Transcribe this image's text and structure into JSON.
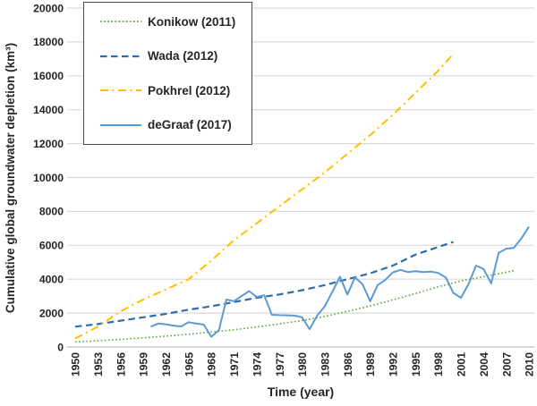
{
  "chart_data": {
    "type": "line",
    "title": "",
    "xlabel": "Time (year)",
    "ylabel": "Cumulative global groundwater depletion (km³)",
    "xlim": [
      1950,
      2010
    ],
    "ylim": [
      0,
      20000
    ],
    "x_ticks": [
      1950,
      1953,
      1956,
      1959,
      1962,
      1965,
      1968,
      1971,
      1974,
      1977,
      1980,
      1983,
      1986,
      1989,
      1992,
      1995,
      1998,
      2001,
      2004,
      2007,
      2010
    ],
    "y_ticks": [
      0,
      2000,
      4000,
      6000,
      8000,
      10000,
      12000,
      14000,
      16000,
      18000,
      20000
    ],
    "grid": "horizontal-only",
    "gridline_color": "#D9D9D9",
    "axis_line_color": "#BFBFBF",
    "text_color": "#262626",
    "legend_position": "top-left",
    "series": [
      {
        "name": "Konikow (2011)",
        "color": "#70AD47",
        "style": "dotted",
        "width": 1.7,
        "x": [
          1950,
          1953,
          1956,
          1959,
          1962,
          1965,
          1968,
          1971,
          1974,
          1977,
          1980,
          1983,
          1986,
          1989,
          1992,
          1995,
          1998,
          2001,
          2004,
          2008
        ],
        "y": [
          300,
          370,
          450,
          540,
          640,
          750,
          880,
          1020,
          1180,
          1360,
          1560,
          1800,
          2100,
          2420,
          2780,
          3150,
          3550,
          3900,
          4150,
          4500
        ]
      },
      {
        "name": "Wada (2012)",
        "color": "#2E6DA8",
        "style": "dashed",
        "width": 2.2,
        "x": [
          1950,
          1953,
          1956,
          1959,
          1962,
          1965,
          1968,
          1971,
          1974,
          1977,
          1980,
          1983,
          1986,
          1989,
          1992,
          1995,
          1998,
          2000
        ],
        "y": [
          1200,
          1350,
          1550,
          1750,
          1950,
          2200,
          2400,
          2650,
          2900,
          3100,
          3350,
          3650,
          4000,
          4350,
          4800,
          5450,
          5900,
          6200
        ]
      },
      {
        "name": "Pokhrel (2012)",
        "color": "#FFC000",
        "style": "dashdot",
        "width": 2,
        "x": [
          1950,
          1953,
          1956,
          1959,
          1962,
          1965,
          1968,
          1971,
          1974,
          1977,
          1980,
          1983,
          1986,
          1989,
          1992,
          1995,
          1998,
          2000
        ],
        "y": [
          500,
          1200,
          2100,
          2800,
          3400,
          4000,
          5100,
          6300,
          7300,
          8300,
          9300,
          10300,
          11400,
          12500,
          13700,
          15000,
          16300,
          17300
        ]
      },
      {
        "name": "deGraaf (2017)",
        "color": "#5B9BD5",
        "style": "solid",
        "width": 2,
        "x": [
          1960,
          1961,
          1962,
          1963,
          1964,
          1965,
          1966,
          1967,
          1968,
          1969,
          1970,
          1971,
          1972,
          1973,
          1974,
          1975,
          1976,
          1977,
          1978,
          1979,
          1980,
          1981,
          1982,
          1983,
          1984,
          1985,
          1986,
          1987,
          1988,
          1989,
          1990,
          1991,
          1992,
          1993,
          1994,
          1995,
          1996,
          1997,
          1998,
          1999,
          2000,
          2001,
          2002,
          2003,
          2004,
          2005,
          2006,
          2007,
          2008,
          2009,
          2010
        ],
        "y": [
          1200,
          1380,
          1330,
          1260,
          1210,
          1460,
          1380,
          1320,
          600,
          1000,
          2800,
          2700,
          3000,
          3300,
          2950,
          3050,
          1900,
          1880,
          1870,
          1850,
          1750,
          1050,
          1850,
          2400,
          3250,
          4150,
          3100,
          4100,
          3700,
          2700,
          3650,
          3950,
          4400,
          4550,
          4420,
          4470,
          4420,
          4450,
          4370,
          4100,
          3200,
          2900,
          3700,
          4800,
          4600,
          3750,
          5550,
          5800,
          5850,
          6400,
          7100
        ]
      }
    ]
  }
}
